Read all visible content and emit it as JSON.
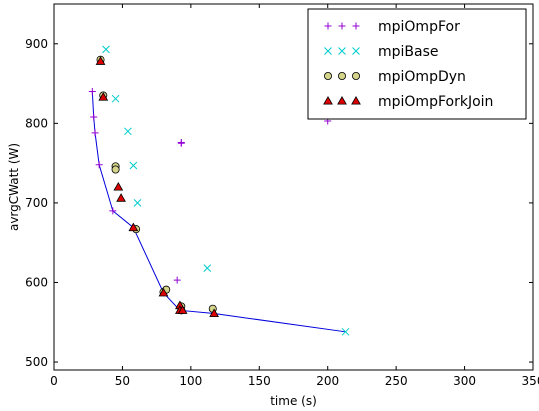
{
  "chart_data": {
    "type": "scatter",
    "xlabel": "time (s)",
    "ylabel": "avrgCWatt (W)",
    "xlim": [
      0,
      350
    ],
    "ylim": [
      490,
      950
    ],
    "xticks": [
      0,
      50,
      100,
      150,
      200,
      250,
      300,
      350
    ],
    "yticks": [
      500,
      600,
      700,
      800,
      900
    ],
    "legend_position": "top-right",
    "series": [
      {
        "name": "mpiOmpFor",
        "marker": "plus",
        "color": "#9400d3",
        "points": [
          [
            28,
            840
          ],
          [
            29,
            808
          ],
          [
            30,
            788
          ],
          [
            33,
            748
          ],
          [
            43,
            690
          ],
          [
            90,
            603
          ],
          [
            93,
            776
          ],
          [
            93,
            775
          ],
          [
            200,
            803
          ]
        ]
      },
      {
        "name": "mpiBase",
        "marker": "x",
        "color": "#00cccc",
        "points": [
          [
            38,
            893
          ],
          [
            45,
            831
          ],
          [
            54,
            790
          ],
          [
            58,
            747
          ],
          [
            61,
            700
          ],
          [
            112,
            618
          ],
          [
            213,
            538
          ]
        ]
      },
      {
        "name": "mpiOmpDyn",
        "marker": "circle",
        "color": "#d4d48a",
        "points": [
          [
            34,
            880
          ],
          [
            36,
            835
          ],
          [
            45,
            746
          ],
          [
            45,
            742
          ],
          [
            60,
            667
          ],
          [
            80,
            588
          ],
          [
            82,
            591
          ],
          [
            93,
            570
          ],
          [
            93,
            565
          ],
          [
            116,
            567
          ]
        ]
      },
      {
        "name": "mpiOmpForkJoin",
        "marker": "triangle",
        "color": "#dd0000",
        "points": [
          [
            34,
            878
          ],
          [
            36,
            833
          ],
          [
            47,
            720
          ],
          [
            49,
            706
          ],
          [
            58,
            669
          ],
          [
            80,
            587
          ],
          [
            92,
            571
          ],
          [
            92,
            565
          ],
          [
            94,
            565
          ],
          [
            117,
            561
          ]
        ]
      }
    ],
    "frontier_line": {
      "color": "#0000dd",
      "points": [
        [
          28,
          840
        ],
        [
          29,
          808
        ],
        [
          30,
          788
        ],
        [
          33,
          748
        ],
        [
          43,
          690
        ],
        [
          58,
          669
        ],
        [
          80,
          587
        ],
        [
          92,
          565
        ],
        [
          117,
          561
        ],
        [
          213,
          538
        ]
      ]
    }
  }
}
